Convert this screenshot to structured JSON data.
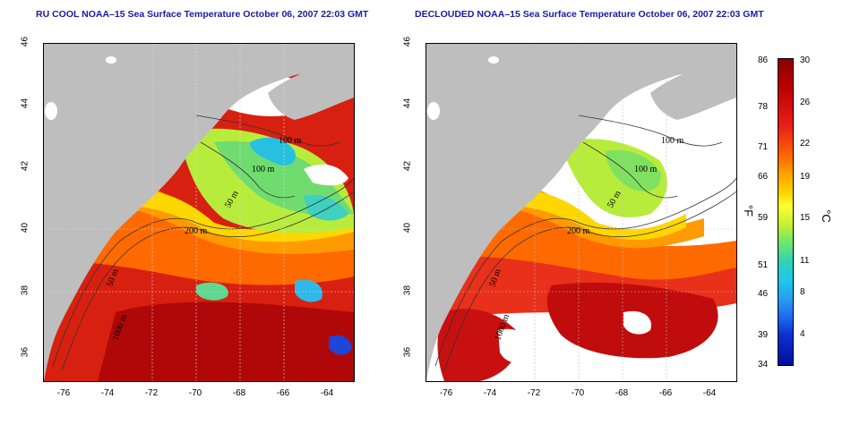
{
  "titles": {
    "left": "RU COOL NOAA–15 Sea Surface Temperature October 06, 2007 22:03 GMT",
    "right": "DECLOUDED NOAA–15 Sea Surface Temperature October 06, 2007 22:03 GMT"
  },
  "axes": {
    "lat_ticks": [
      "46",
      "44",
      "42",
      "40",
      "38",
      "36"
    ],
    "lon_ticks": [
      "-76",
      "-74",
      "-72",
      "-70",
      "-68",
      "-66",
      "-64"
    ]
  },
  "contours": {
    "m100a": "100 m",
    "m100b": "100 m",
    "m50": "50 m",
    "m200": "200 m",
    "m50b": "50 m",
    "m1000": "1000 m"
  },
  "colorbar": {
    "fahrenheit_unit": "°F",
    "celsius_unit": "°C",
    "fahrenheit_ticks": [
      "86",
      "78",
      "71",
      "66",
      "59",
      "51",
      "46",
      "39",
      "34"
    ],
    "celsius_ticks": [
      "30",
      "26",
      "22",
      "19",
      "15",
      "11",
      "8",
      "4"
    ]
  },
  "colors": {
    "land": "#bebebe",
    "cloud": "#ffffff",
    "title": "#1a1aa6",
    "warm": "#d01010",
    "hot": "#a00000",
    "orange": "#ff6a00",
    "yellow": "#ffd700",
    "green": "#7fe060",
    "cyan": "#30c8e0",
    "blue": "#1e50e0"
  }
}
